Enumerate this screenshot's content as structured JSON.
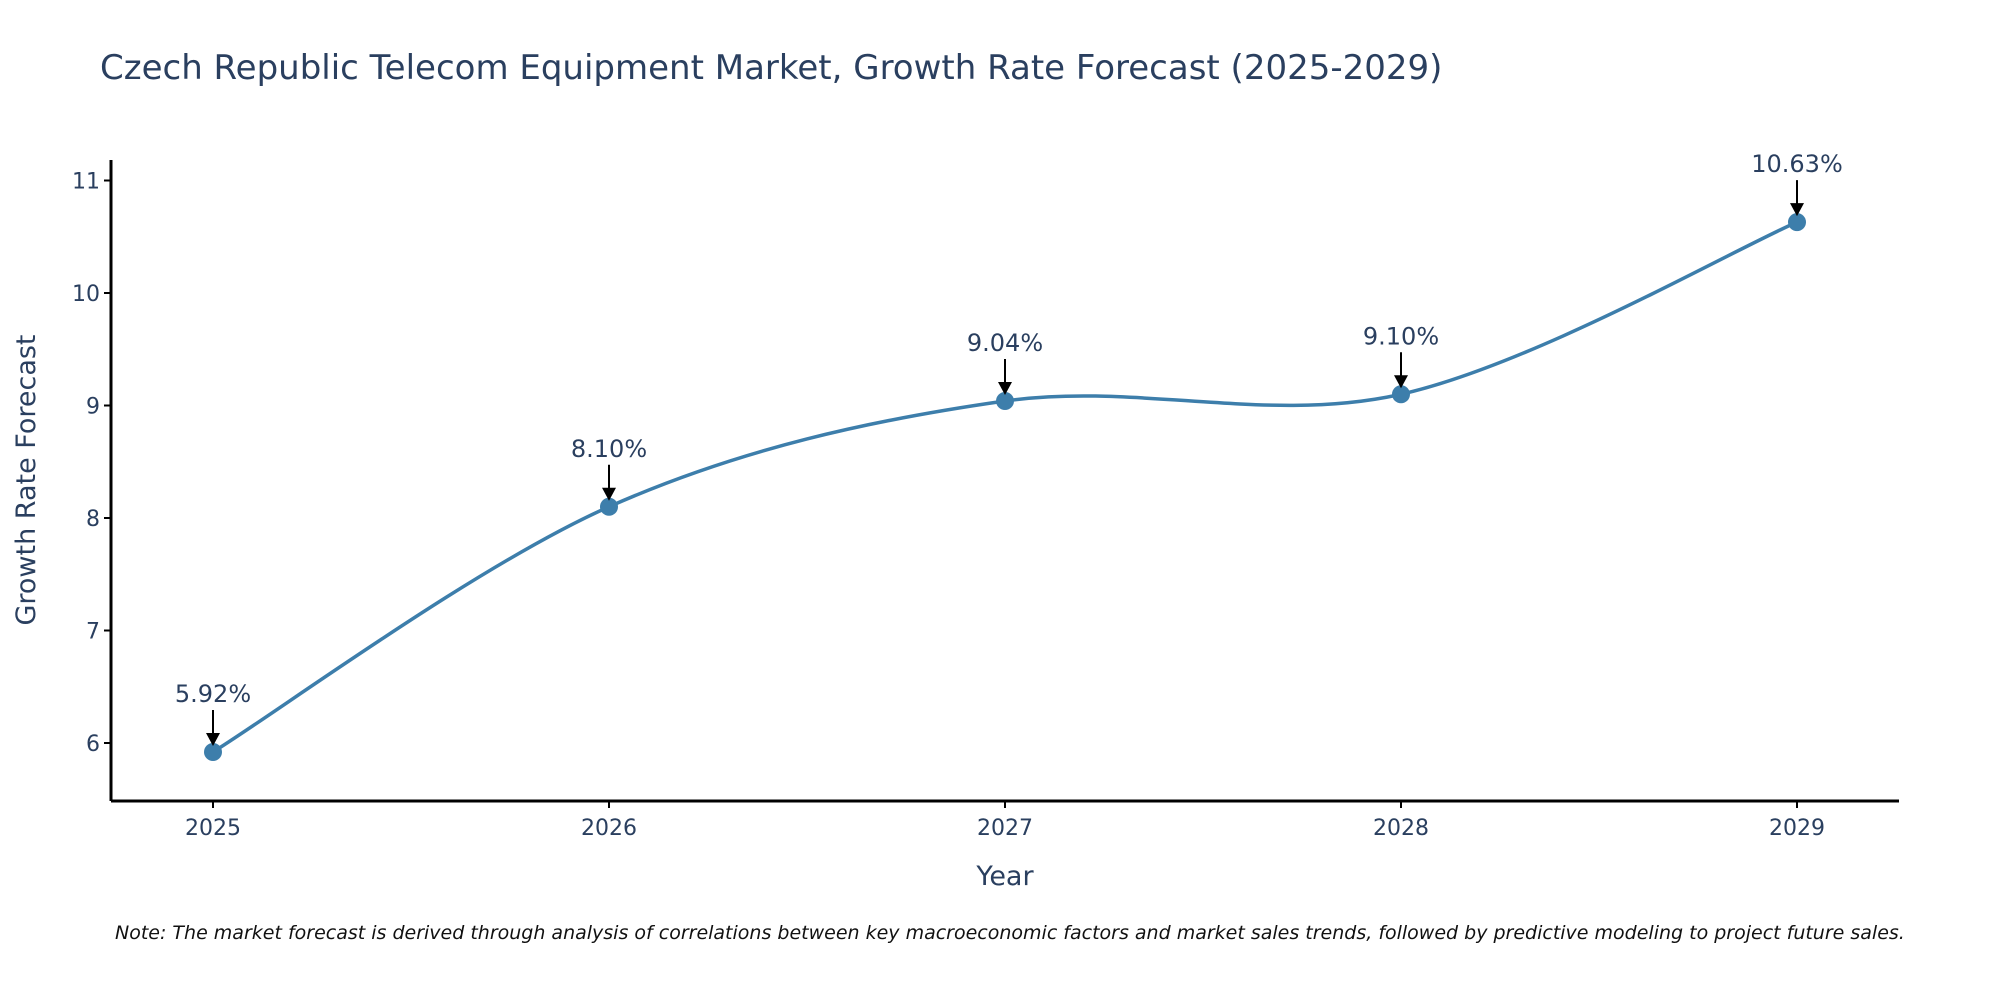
{
  "chart_data": {
    "type": "line",
    "title": "Czech Republic Telecom Equipment Market, Growth Rate Forecast (2025-2029)",
    "xlabel": "Year",
    "ylabel": "Growth Rate Forecast",
    "categories": [
      "2025",
      "2026",
      "2027",
      "2028",
      "2029"
    ],
    "series": [
      {
        "name": "Growth Rate Forecast",
        "values": [
          5.92,
          8.1,
          9.04,
          9.1,
          10.63
        ],
        "color": "#3d7eab",
        "smoothing": "spline"
      }
    ],
    "annotations": [
      "5.92%",
      "8.10%",
      "9.04%",
      "9.10%",
      "10.63%"
    ],
    "y_ticks": [
      6,
      7,
      8,
      9,
      10,
      11
    ],
    "ylim": [
      5.4,
      11.1
    ],
    "grid": false,
    "note": "Note: The market forecast is derived through analysis of correlations between key macroeconomic factors and market sales trends, followed by predictive modeling to project future sales."
  }
}
